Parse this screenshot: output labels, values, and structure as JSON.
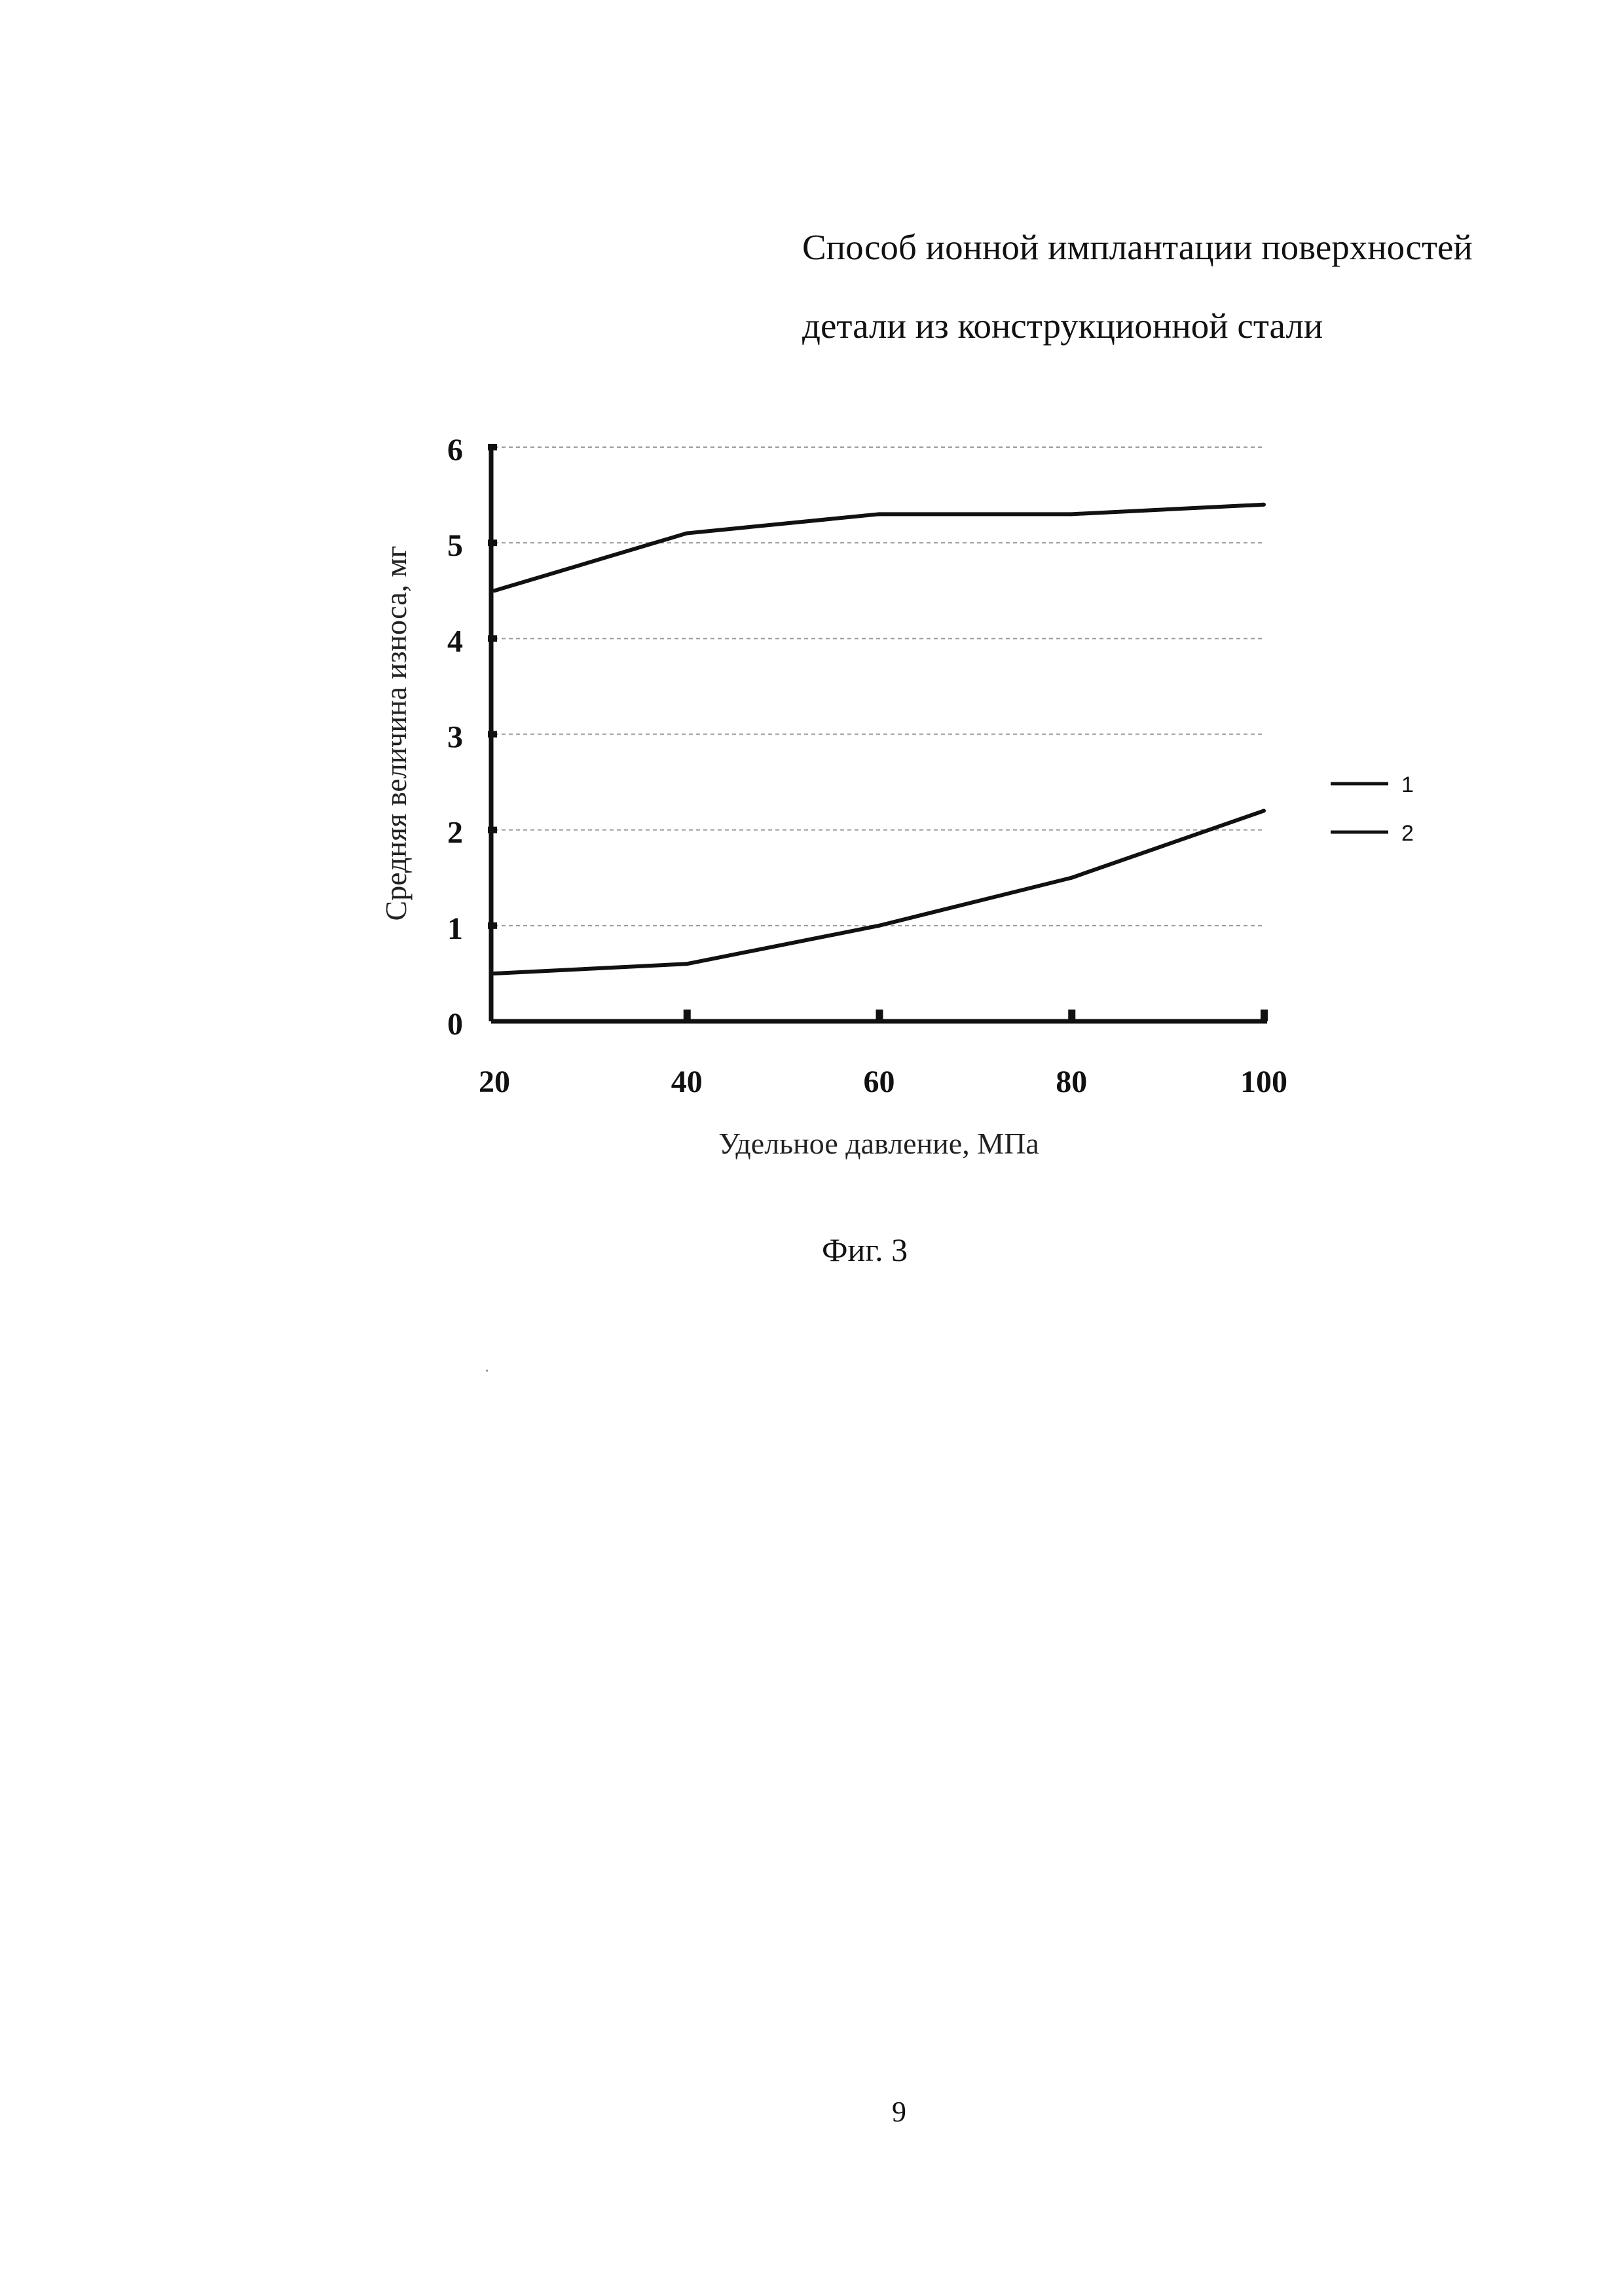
{
  "document": {
    "title_line1": "Способ ионной имплантации поверхностей",
    "title_line2": "детали из конструкционной стали",
    "figure_caption": "Фиг. 3",
    "page_number": "9"
  },
  "chart_data": {
    "type": "line",
    "title": "",
    "xlabel": "Удельное давление, МПа",
    "ylabel": "Средняя величина износа, мг",
    "x": [
      20,
      40,
      60,
      80,
      100
    ],
    "x_tick_labels": [
      "20",
      "40",
      "60",
      "80",
      "100"
    ],
    "y_tick_labels": [
      "0",
      "1",
      "2",
      "3",
      "4",
      "5",
      "6"
    ],
    "xlim": [
      20,
      100
    ],
    "ylim": [
      0,
      6
    ],
    "grid": "horizontal dashed",
    "legend_position": "right",
    "series": [
      {
        "name": "1",
        "values": [
          4.5,
          5.1,
          5.3,
          5.3,
          5.4
        ],
        "color": "#111111"
      },
      {
        "name": "2",
        "values": [
          0.5,
          0.6,
          1.0,
          1.5,
          2.2
        ],
        "color": "#111111"
      }
    ]
  }
}
